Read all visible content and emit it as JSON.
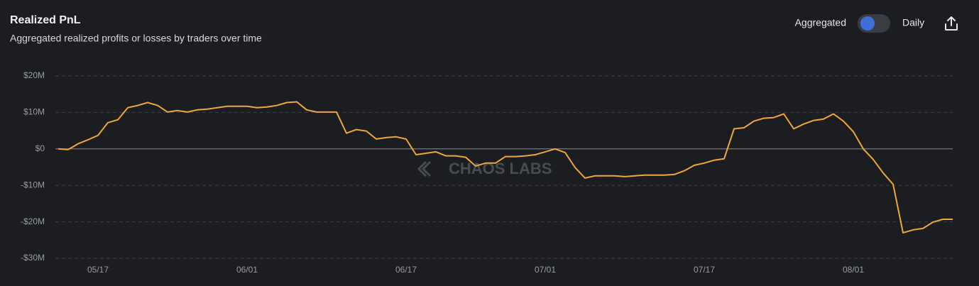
{
  "chart_data": {
    "type": "line",
    "title": "Realized PnL",
    "subtitle": "Aggregated realized profits or losses by traders over time",
    "controls": {
      "left": "Aggregated",
      "right": "Daily"
    },
    "watermark": "CHAOS LABS",
    "categories": [
      null,
      null,
      null,
      null,
      "05/17",
      null,
      null,
      null,
      null,
      null,
      null,
      null,
      null,
      null,
      null,
      null,
      null,
      null,
      null,
      "06/01",
      null,
      null,
      null,
      null,
      null,
      null,
      null,
      null,
      null,
      null,
      null,
      null,
      null,
      null,
      null,
      "06/17",
      null,
      null,
      null,
      null,
      null,
      null,
      null,
      null,
      null,
      null,
      null,
      null,
      null,
      "07/01",
      null,
      null,
      null,
      null,
      null,
      null,
      null,
      null,
      null,
      null,
      null,
      null,
      null,
      null,
      null,
      "07/17",
      null,
      null,
      null,
      null,
      null,
      null,
      null,
      null,
      null,
      null,
      null,
      null,
      null,
      null,
      "08/01",
      null,
      null,
      null,
      null,
      null,
      null,
      null,
      null,
      null,
      null
    ],
    "values": [
      0,
      -0.2,
      1.4,
      2.5,
      3.7,
      7.2,
      8.0,
      11.3,
      11.9,
      12.7,
      11.9,
      10.1,
      10.5,
      10.1,
      10.7,
      10.9,
      11.3,
      11.7,
      11.7,
      11.7,
      11.3,
      11.5,
      11.9,
      12.7,
      12.9,
      10.7,
      10.1,
      10.1,
      10.1,
      4.3,
      5.3,
      4.9,
      2.7,
      3.1,
      3.3,
      2.7,
      -1.6,
      -1.2,
      -0.8,
      -1.9,
      -1.9,
      -2.3,
      -4.7,
      -3.9,
      -3.9,
      -2.1,
      -2.1,
      -1.9,
      -1.6,
      -0.8,
      0,
      -1.0,
      -5.1,
      -8.0,
      -7.4,
      -7.4,
      -7.4,
      -7.6,
      -7.4,
      -7.2,
      -7.2,
      -7.2,
      -7.0,
      -6.0,
      -4.5,
      -3.9,
      -3.1,
      -2.7,
      5.5,
      5.8,
      7.6,
      8.4,
      8.6,
      9.6,
      5.5,
      6.8,
      7.8,
      8.2,
      9.6,
      7.6,
      4.7,
      0,
      -2.9,
      -6.6,
      -9.7,
      -23.0,
      -22.2,
      -21.8,
      -20.1,
      -19.3,
      -19.3
    ],
    "color": "#f0a63a",
    "ylim": [
      -30,
      20
    ],
    "yticks": [
      {
        "value": -30,
        "label": "-$30M"
      },
      {
        "value": -20,
        "label": "-$20M"
      },
      {
        "value": -10,
        "label": "-$10M"
      },
      {
        "value": 0,
        "label": "$0"
      },
      {
        "value": 10,
        "label": "$10M"
      },
      {
        "value": 20,
        "label": "$20M"
      }
    ],
    "grid": true
  }
}
